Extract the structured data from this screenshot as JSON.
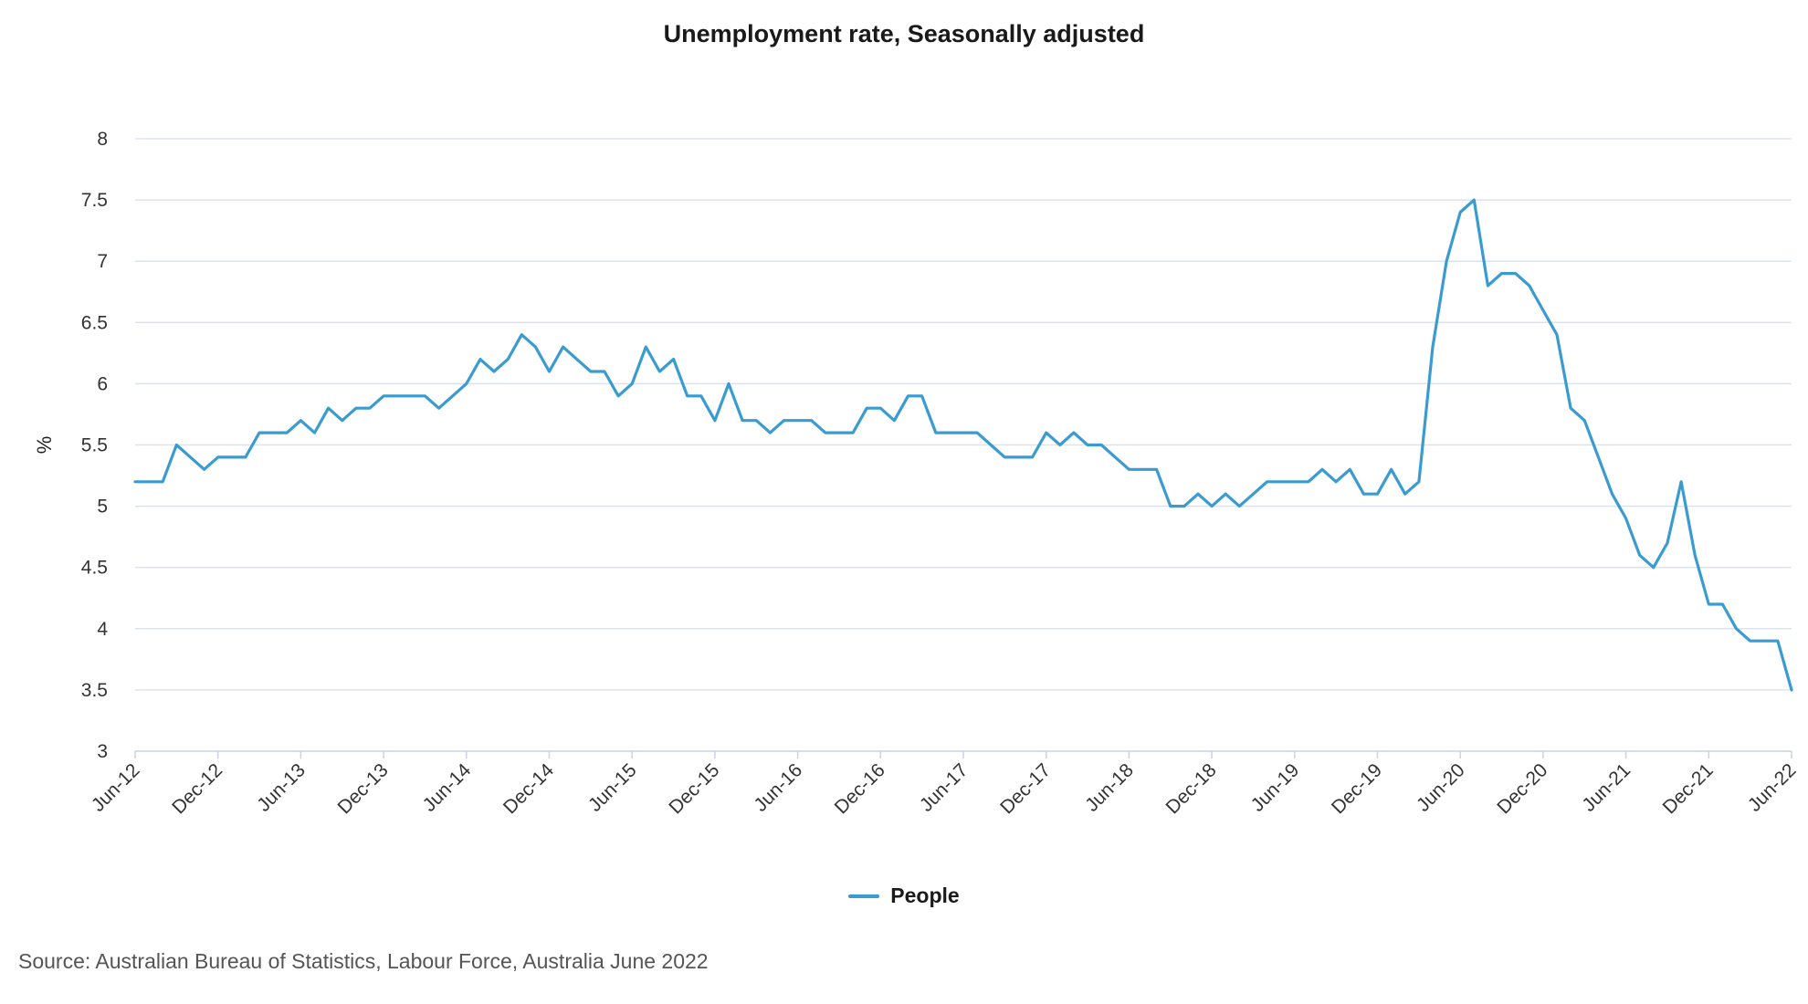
{
  "chart_data": {
    "type": "line",
    "title": "Unemployment rate, Seasonally adjusted",
    "ylabel": "%",
    "xlabel": "",
    "ylim": [
      3,
      8
    ],
    "y_ticks": [
      "3",
      "3.5",
      "4",
      "4.5",
      "5",
      "5.5",
      "6",
      "6.5",
      "7",
      "7.5",
      "8"
    ],
    "x_ticks": [
      "Jun-12",
      "Dec-12",
      "Jun-13",
      "Dec-13",
      "Jun-14",
      "Dec-14",
      "Jun-15",
      "Dec-15",
      "Jun-16",
      "Dec-16",
      "Jun-17",
      "Dec-17",
      "Jun-18",
      "Dec-18",
      "Jun-19",
      "Dec-19",
      "Jun-20",
      "Dec-20",
      "Jun-21",
      "Dec-21",
      "Jun-22"
    ],
    "x_range": [
      "Jun-12",
      "Jun-22"
    ],
    "grid": "horizontal",
    "legend_position": "bottom-center",
    "series": [
      {
        "name": "People",
        "color": "#3a9bd0",
        "values": [
          5.2,
          5.2,
          5.2,
          5.5,
          5.4,
          5.3,
          5.4,
          5.4,
          5.4,
          5.6,
          5.6,
          5.6,
          5.7,
          5.6,
          5.8,
          5.7,
          5.8,
          5.8,
          5.9,
          5.9,
          5.9,
          5.9,
          5.8,
          5.9,
          6.0,
          6.2,
          6.1,
          6.2,
          6.4,
          6.3,
          6.1,
          6.3,
          6.2,
          6.1,
          6.1,
          5.9,
          6.0,
          6.3,
          6.1,
          6.2,
          5.9,
          5.9,
          5.7,
          6.0,
          5.7,
          5.7,
          5.6,
          5.7,
          5.7,
          5.7,
          5.6,
          5.6,
          5.6,
          5.8,
          5.8,
          5.7,
          5.9,
          5.9,
          5.6,
          5.6,
          5.6,
          5.6,
          5.5,
          5.4,
          5.4,
          5.4,
          5.6,
          5.5,
          5.6,
          5.5,
          5.5,
          5.4,
          5.3,
          5.3,
          5.3,
          5.0,
          5.0,
          5.1,
          5.0,
          5.1,
          5.0,
          5.1,
          5.2,
          5.2,
          5.2,
          5.2,
          5.3,
          5.2,
          5.3,
          5.1,
          5.1,
          5.3,
          5.1,
          5.2,
          6.3,
          7.0,
          7.4,
          7.5,
          6.8,
          6.9,
          6.9,
          6.8,
          6.6,
          6.4,
          5.8,
          5.7,
          5.4,
          5.1,
          4.9,
          4.6,
          4.5,
          4.7,
          5.2,
          4.6,
          4.2,
          4.2,
          4.0,
          3.9,
          3.9,
          3.9,
          3.5
        ]
      }
    ]
  },
  "source": "Source: Australian Bureau of Statistics, Labour Force, Australia June 2022"
}
